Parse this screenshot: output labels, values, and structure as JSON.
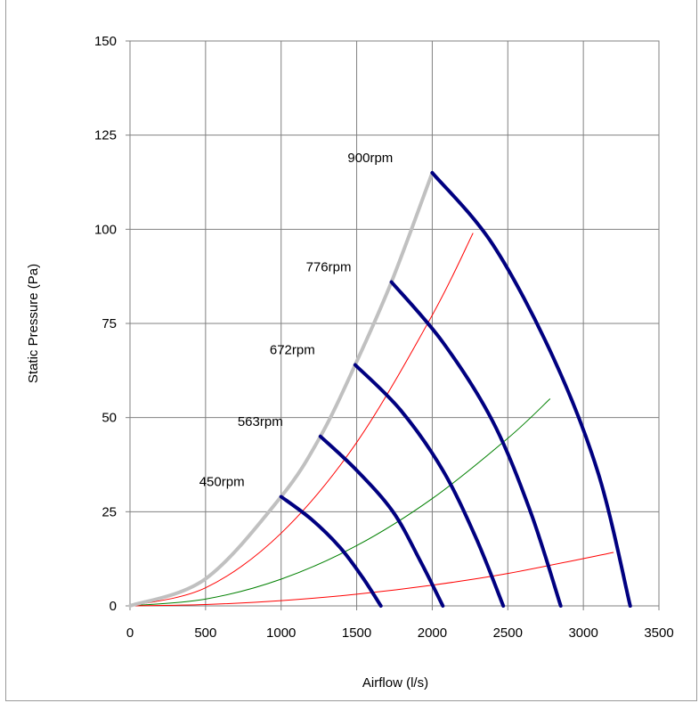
{
  "chart_data": {
    "type": "line",
    "title": "",
    "xlabel": "Airflow (l/s)",
    "ylabel": "Static Pressure (Pa)",
    "xlim": [
      0,
      3500
    ],
    "ylim": [
      0,
      150
    ],
    "xticks": [
      "0",
      "500",
      "1000",
      "1500",
      "2000",
      "2500",
      "3000",
      "3500"
    ],
    "yticks": [
      "0",
      "25",
      "50",
      "75",
      "100",
      "125",
      "150"
    ],
    "grid": true,
    "colors": {
      "fan": "#000080",
      "envelope": "#c0c0c0",
      "system_red": "#ff0000",
      "system_green": "#008000",
      "grid": "#808080"
    },
    "series": [
      {
        "label": "900rpm",
        "points": [
          [
            2000,
            115
          ],
          [
            2400,
            96
          ],
          [
            2800,
            66
          ],
          [
            3100,
            35
          ],
          [
            3310,
            0
          ]
        ]
      },
      {
        "label": "776rpm",
        "points": [
          [
            1730,
            86
          ],
          [
            2070,
            70
          ],
          [
            2400,
            49
          ],
          [
            2650,
            25
          ],
          [
            2850,
            0
          ]
        ]
      },
      {
        "label": "672rpm",
        "points": [
          [
            1490,
            64
          ],
          [
            1790,
            52
          ],
          [
            2070,
            36
          ],
          [
            2290,
            18
          ],
          [
            2470,
            0
          ]
        ]
      },
      {
        "label": "563rpm",
        "points": [
          [
            1260,
            45
          ],
          [
            1500,
            36
          ],
          [
            1740,
            25
          ],
          [
            1920,
            12
          ],
          [
            2070,
            0
          ]
        ]
      },
      {
        "label": "450rpm",
        "points": [
          [
            1000,
            29
          ],
          [
            1200,
            23
          ],
          [
            1390,
            15.5
          ],
          [
            1540,
            7.5
          ],
          [
            1660,
            0
          ]
        ]
      }
    ],
    "envelope": {
      "points": [
        [
          0,
          0
        ],
        [
          500,
          7.2
        ],
        [
          1000,
          29
        ],
        [
          1260,
          45
        ],
        [
          1490,
          64
        ],
        [
          1730,
          86
        ],
        [
          2000,
          115
        ]
      ]
    },
    "system_curves": [
      {
        "color": "red",
        "points": [
          [
            0,
            0
          ],
          [
            500,
            4.8
          ],
          [
            1000,
            19.3
          ],
          [
            1500,
            43.4
          ],
          [
            2000,
            77.2
          ],
          [
            2270,
            99
          ]
        ]
      },
      {
        "color": "green",
        "points": [
          [
            0,
            0
          ],
          [
            500,
            1.8
          ],
          [
            1000,
            7.1
          ],
          [
            1500,
            16
          ],
          [
            2000,
            28.5
          ],
          [
            2500,
            44.5
          ],
          [
            2780,
            55
          ]
        ]
      },
      {
        "color": "red",
        "points": [
          [
            0,
            0
          ],
          [
            500,
            0.35
          ],
          [
            1000,
            1.4
          ],
          [
            1500,
            3.1
          ],
          [
            2000,
            5.5
          ],
          [
            2500,
            8.6
          ],
          [
            3200,
            14.2
          ]
        ]
      }
    ]
  }
}
